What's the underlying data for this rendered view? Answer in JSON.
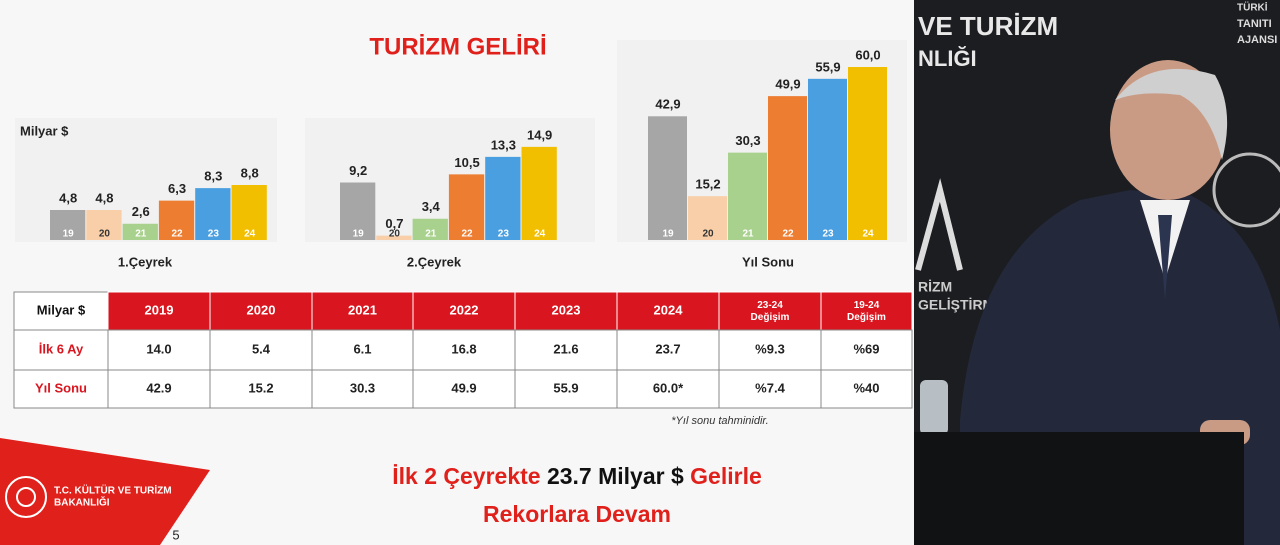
{
  "chart_data": [
    {
      "type": "bar",
      "ylabel": "Milyar $",
      "xlabel": "1.Çeyrek",
      "categories": [
        "19",
        "20",
        "21",
        "22",
        "23",
        "24"
      ],
      "values": [
        4.8,
        4.8,
        2.6,
        6.3,
        8.3,
        8.8
      ],
      "value_labels": [
        "4,8",
        "4,8",
        "2,6",
        "6,3",
        "8,3",
        "8,8"
      ],
      "colors": [
        "#a6a6a6",
        "#f8cfa8",
        "#a9d18e",
        "#ed7d31",
        "#4a9fe0",
        "#f2be00"
      ],
      "ylim": [
        0,
        16
      ]
    },
    {
      "type": "bar",
      "xlabel": "2.Çeyrek",
      "categories": [
        "19",
        "20",
        "21",
        "22",
        "23",
        "24"
      ],
      "values": [
        9.2,
        0.7,
        3.4,
        10.5,
        13.3,
        14.9
      ],
      "value_labels": [
        "9,2",
        "0,7",
        "3,4",
        "10,5",
        "13,3",
        "14,9"
      ],
      "colors": [
        "#a6a6a6",
        "#f8cfa8",
        "#a9d18e",
        "#ed7d31",
        "#4a9fe0",
        "#f2be00"
      ],
      "ylim": [
        0,
        16
      ]
    },
    {
      "type": "bar",
      "xlabel": "Yıl Sonu",
      "categories": [
        "19",
        "20",
        "21",
        "22",
        "23",
        "24"
      ],
      "values": [
        42.9,
        15.2,
        30.3,
        49.9,
        55.9,
        60.0
      ],
      "value_labels": [
        "42,9",
        "15,2",
        "30,3",
        "49,9",
        "55,9",
        "60,0"
      ],
      "colors": [
        "#a6a6a6",
        "#f8cfa8",
        "#a9d18e",
        "#ed7d31",
        "#4a9fe0",
        "#f2be00"
      ],
      "ylim": [
        0,
        60
      ]
    }
  ],
  "title": "TURİZM GELİRİ",
  "table": {
    "header": [
      "Milyar $",
      "2019",
      "2020",
      "2021",
      "2022",
      "2023",
      "2024",
      "23-24 Değişim",
      "19-24 Değişim"
    ],
    "rows": [
      [
        "İlk 6 Ay",
        "14.0",
        "5.4",
        "6.1",
        "16.8",
        "21.6",
        "23.7",
        "%9.3",
        "%69"
      ],
      [
        "Yıl Sonu",
        "42.9",
        "15.2",
        "30.3",
        "49.9",
        "55.9",
        "60.0*",
        "%7.4",
        "%40"
      ]
    ]
  },
  "footnote": "*Yıl sonu tahminidir.",
  "headline": {
    "line1": [
      "İlk 2 Çeyrekte",
      "23.7 Milyar $",
      "Gelirle"
    ],
    "line2": "Rekorlara Devam"
  },
  "logo": {
    "line1": "T.C. KÜLTÜR VE TURİZM",
    "line2": "BAKANLIĞI"
  },
  "page_number": "5",
  "broadcast": {
    "texts": [
      "VE TURİZM",
      "NLIĞI",
      "TÜRKİ",
      "TANITI",
      "AJANSI",
      "RİZM",
      "GELİŞTİRME"
    ]
  }
}
